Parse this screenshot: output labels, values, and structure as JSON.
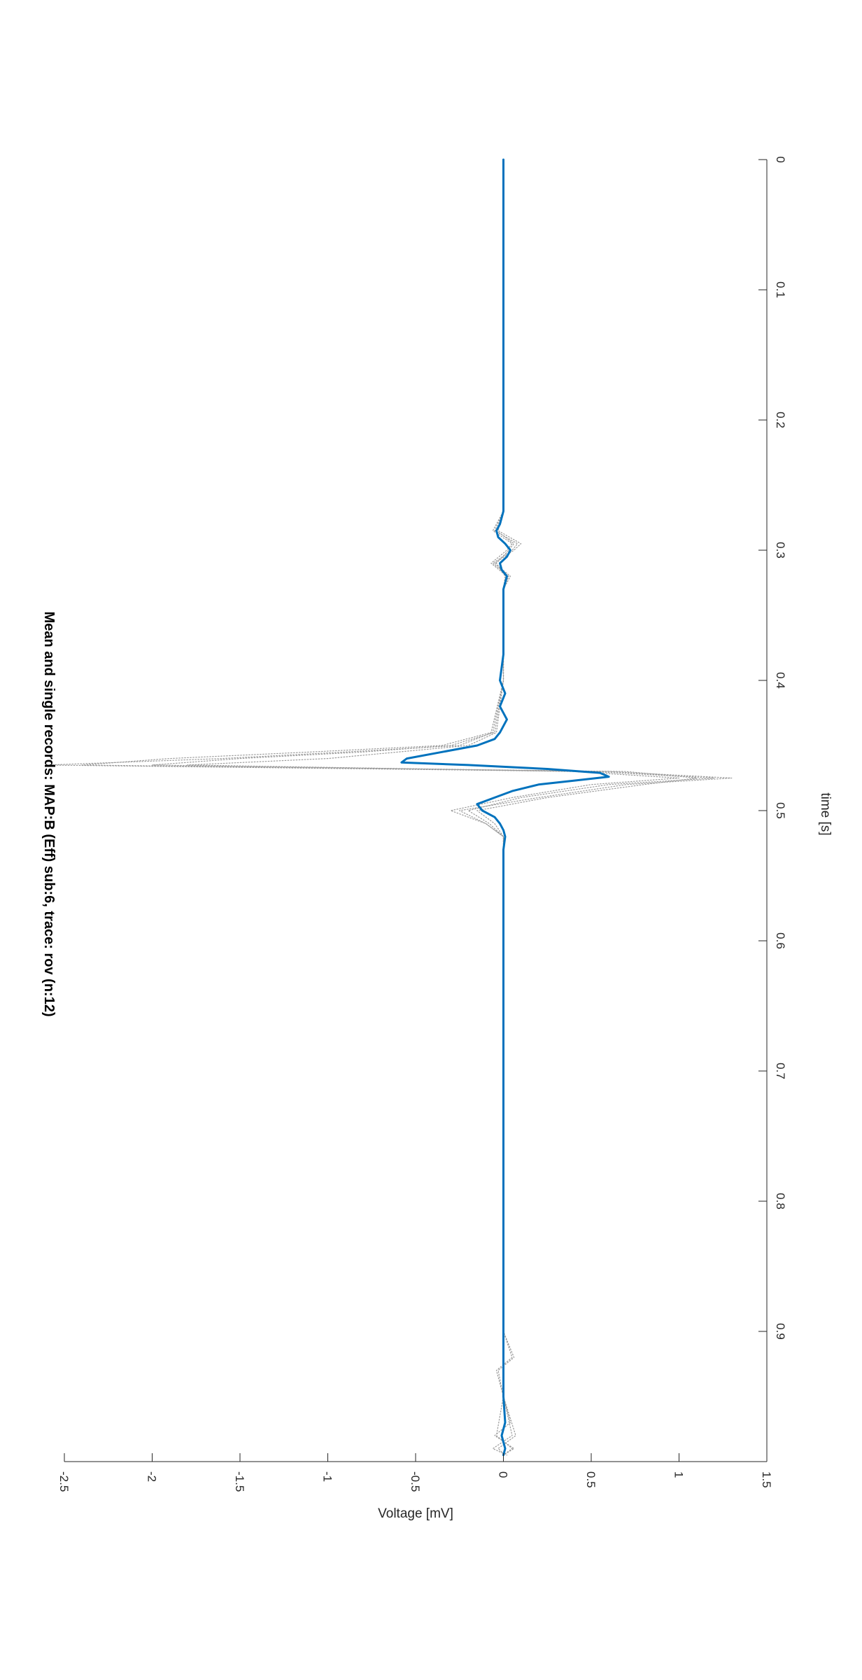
{
  "chart_data": {
    "type": "line",
    "title": "Mean and single records: MAP:B (Eff) sub:6, trace: rov (n:12)",
    "xlabel": "time [s]",
    "ylabel": "Voltage [mV]",
    "xlim": [
      0,
      1
    ],
    "ylim": [
      -2.5,
      1.5
    ],
    "x_ticks": [
      0,
      0.1,
      0.2,
      0.3,
      0.4,
      0.5,
      0.6,
      0.7,
      0.8,
      0.9
    ],
    "x_tick_labels": [
      "0",
      "0.1",
      "0.2",
      "0.3",
      "0.4",
      "0.5",
      "0.6",
      "0.7",
      "0.8",
      "0.9"
    ],
    "y_ticks": [
      1.5,
      1,
      0.5,
      0,
      -0.5,
      -1,
      -1.5,
      -2,
      -2.5
    ],
    "y_tick_labels": [
      "1.5",
      "1",
      "0.5",
      "0",
      "-0.5",
      "-1",
      "-1.5",
      "-2",
      "-2.5"
    ],
    "grid": false,
    "orientation": "rotated 90 degrees clockwise",
    "series": [
      {
        "role": "mean",
        "color": "#0072BD",
        "style": "solid",
        "x": [
          0,
          0.05,
          0.1,
          0.15,
          0.2,
          0.25,
          0.27,
          0.28,
          0.285,
          0.29,
          0.295,
          0.3,
          0.305,
          0.31,
          0.315,
          0.32,
          0.33,
          0.35,
          0.38,
          0.4,
          0.41,
          0.42,
          0.43,
          0.44,
          0.445,
          0.45,
          0.455,
          0.46,
          0.463,
          0.465,
          0.468,
          0.471,
          0.474,
          0.477,
          0.48,
          0.485,
          0.49,
          0.495,
          0.5,
          0.505,
          0.51,
          0.515,
          0.52,
          0.53,
          0.55,
          0.6,
          0.7,
          0.8,
          0.9,
          0.95,
          0.97,
          0.98,
          0.99,
          0.995
        ],
        "y": [
          0,
          0,
          0,
          0,
          0,
          0,
          0,
          -0.02,
          -0.04,
          -0.03,
          0.01,
          0.04,
          0.02,
          -0.02,
          -0.01,
          0.02,
          0.0,
          0.0,
          0.0,
          -0.02,
          0.01,
          -0.02,
          0.02,
          -0.02,
          -0.05,
          -0.15,
          -0.35,
          -0.55,
          -0.58,
          -0.2,
          0.25,
          0.55,
          0.6,
          0.4,
          0.2,
          0.05,
          -0.05,
          -0.15,
          -0.12,
          -0.05,
          -0.02,
          0.0,
          0.01,
          0.0,
          0.0,
          0.0,
          0.0,
          0.0,
          0.0,
          0.0,
          0.01,
          -0.01,
          0.01,
          0.0
        ]
      },
      {
        "role": "single-record",
        "color": "#9a9a9a",
        "style": "dotted",
        "x": [
          0,
          0.1,
          0.2,
          0.27,
          0.285,
          0.295,
          0.3,
          0.31,
          0.32,
          0.33,
          0.4,
          0.44,
          0.45,
          0.455,
          0.46,
          0.465,
          0.47,
          0.475,
          0.48,
          0.49,
          0.5,
          0.51,
          0.52,
          0.6,
          0.9,
          0.92,
          0.93,
          0.95,
          0.98,
          0.99,
          0.995
        ],
        "y": [
          0,
          0,
          0,
          0,
          -0.05,
          0.08,
          0.05,
          -0.06,
          0.03,
          0.0,
          0.0,
          -0.05,
          -0.3,
          -0.8,
          -1.5,
          -2.0,
          0.6,
          1.3,
          0.7,
          0.2,
          -0.25,
          -0.1,
          0.0,
          0.0,
          0.0,
          0.05,
          -0.04,
          0.0,
          0.05,
          -0.06,
          0.02
        ]
      },
      {
        "role": "single-record",
        "color": "#9a9a9a",
        "style": "dotted",
        "x": [
          0,
          0.1,
          0.2,
          0.27,
          0.285,
          0.295,
          0.3,
          0.31,
          0.32,
          0.33,
          0.4,
          0.44,
          0.45,
          0.455,
          0.46,
          0.465,
          0.47,
          0.475,
          0.48,
          0.49,
          0.5,
          0.51,
          0.52,
          0.6,
          0.9,
          0.95,
          0.97,
          0.98,
          0.99,
          0.995
        ],
        "y": [
          0,
          0,
          0,
          0,
          -0.04,
          0.06,
          0.03,
          -0.04,
          0.01,
          0.0,
          0.0,
          -0.06,
          -0.25,
          -0.9,
          -1.6,
          -2.6,
          0.5,
          1.2,
          0.6,
          0.1,
          -0.2,
          -0.08,
          0.0,
          0.0,
          0.0,
          0.0,
          0.04,
          -0.05,
          0.06,
          0.0
        ]
      },
      {
        "role": "single-record",
        "color": "#9a9a9a",
        "style": "dotted",
        "x": [
          0,
          0.1,
          0.2,
          0.27,
          0.285,
          0.295,
          0.3,
          0.31,
          0.32,
          0.33,
          0.4,
          0.44,
          0.45,
          0.455,
          0.46,
          0.465,
          0.47,
          0.475,
          0.48,
          0.49,
          0.5,
          0.51,
          0.52,
          0.6,
          0.9,
          0.95,
          0.98,
          0.99,
          0.995
        ],
        "y": [
          0,
          0,
          0,
          0,
          -0.06,
          0.05,
          0.02,
          -0.07,
          0.02,
          0.0,
          0.0,
          -0.04,
          -0.2,
          -0.6,
          -1.0,
          -1.8,
          0.4,
          1.0,
          0.5,
          0.05,
          -0.3,
          -0.1,
          0.0,
          0.0,
          0.0,
          0.0,
          -0.04,
          0.05,
          0.0
        ]
      },
      {
        "role": "single-record",
        "color": "#9a9a9a",
        "style": "dotted",
        "x": [
          0,
          0.1,
          0.2,
          0.27,
          0.285,
          0.295,
          0.3,
          0.31,
          0.32,
          0.33,
          0.4,
          0.44,
          0.45,
          0.455,
          0.46,
          0.465,
          0.47,
          0.475,
          0.48,
          0.49,
          0.5,
          0.51,
          0.52,
          0.6,
          0.9,
          0.92,
          0.93,
          0.95,
          0.98,
          0.99,
          0.995
        ],
        "y": [
          0,
          0,
          0,
          0,
          -0.03,
          0.1,
          0.06,
          -0.05,
          0.04,
          0.0,
          0.0,
          -0.07,
          -0.35,
          -1.1,
          -1.9,
          -2.4,
          0.7,
          1.1,
          0.8,
          0.25,
          -0.15,
          -0.05,
          0.0,
          0.0,
          0.0,
          0.06,
          -0.03,
          0.0,
          0.07,
          -0.03,
          0.01
        ]
      }
    ]
  }
}
